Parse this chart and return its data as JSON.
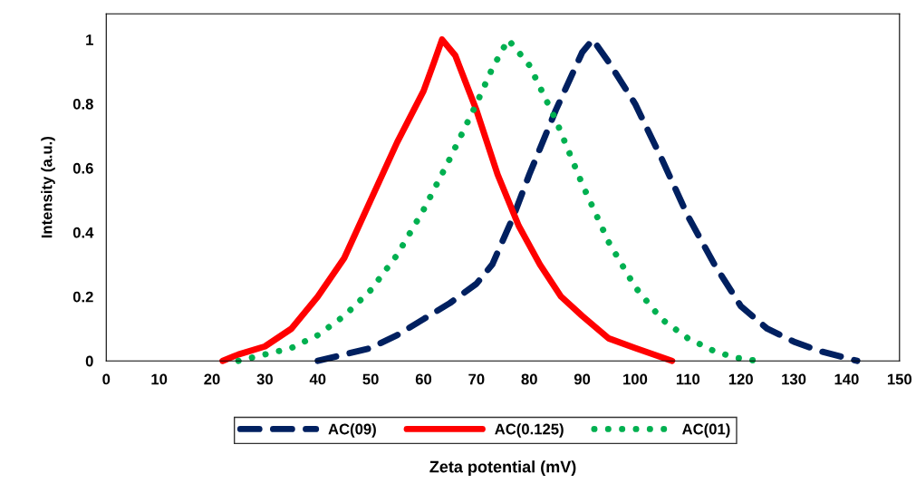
{
  "chart_data": {
    "type": "line",
    "xlabel": "Zeta potential (mV)",
    "ylabel": "Intensity (a.u.)",
    "xlim": [
      0,
      150
    ],
    "xticks": [
      0,
      10,
      20,
      30,
      40,
      50,
      60,
      70,
      80,
      90,
      100,
      110,
      120,
      130,
      140,
      150
    ],
    "ylim": [
      0,
      1.08
    ],
    "yticks": [
      0,
      0.2,
      0.4,
      0.6,
      0.8,
      1
    ],
    "grid": false,
    "legend": "bottom",
    "series": [
      {
        "name": "AC(09)",
        "color": "#002060",
        "line_style": "dashed",
        "x": [
          40,
          45,
          50,
          55,
          60,
          65,
          70,
          73,
          77,
          80,
          85,
          90,
          92,
          95,
          100,
          105,
          110,
          115,
          120,
          125,
          130,
          135,
          142
        ],
        "values": [
          0,
          0.02,
          0.04,
          0.08,
          0.13,
          0.18,
          0.24,
          0.3,
          0.45,
          0.58,
          0.78,
          0.96,
          1.0,
          0.93,
          0.8,
          0.63,
          0.45,
          0.3,
          0.17,
          0.1,
          0.06,
          0.03,
          0
        ]
      },
      {
        "name": "AC(0.125)",
        "color": "#ff0000",
        "line_style": "solid",
        "x": [
          22,
          25,
          30,
          35,
          40,
          45,
          50,
          55,
          60,
          62,
          63.5,
          66,
          70,
          74,
          78,
          82,
          86,
          90,
          95,
          100,
          107
        ],
        "values": [
          0,
          0.02,
          0.045,
          0.1,
          0.2,
          0.32,
          0.5,
          0.68,
          0.84,
          0.93,
          1.0,
          0.95,
          0.78,
          0.58,
          0.42,
          0.3,
          0.2,
          0.14,
          0.07,
          0.04,
          0
        ]
      },
      {
        "name": "AC(01)",
        "color": "#00b050",
        "line_style": "dotted",
        "x": [
          25,
          30,
          35,
          40,
          45,
          50,
          55,
          60,
          65,
          70,
          73,
          76,
          80,
          85,
          90,
          95,
          100,
          105,
          110,
          115,
          119,
          123
        ],
        "values": [
          0,
          0.02,
          0.04,
          0.08,
          0.14,
          0.22,
          0.33,
          0.47,
          0.63,
          0.8,
          0.91,
          1.0,
          0.92,
          0.75,
          0.55,
          0.37,
          0.23,
          0.13,
          0.07,
          0.03,
          0.01,
          0
        ]
      }
    ]
  }
}
